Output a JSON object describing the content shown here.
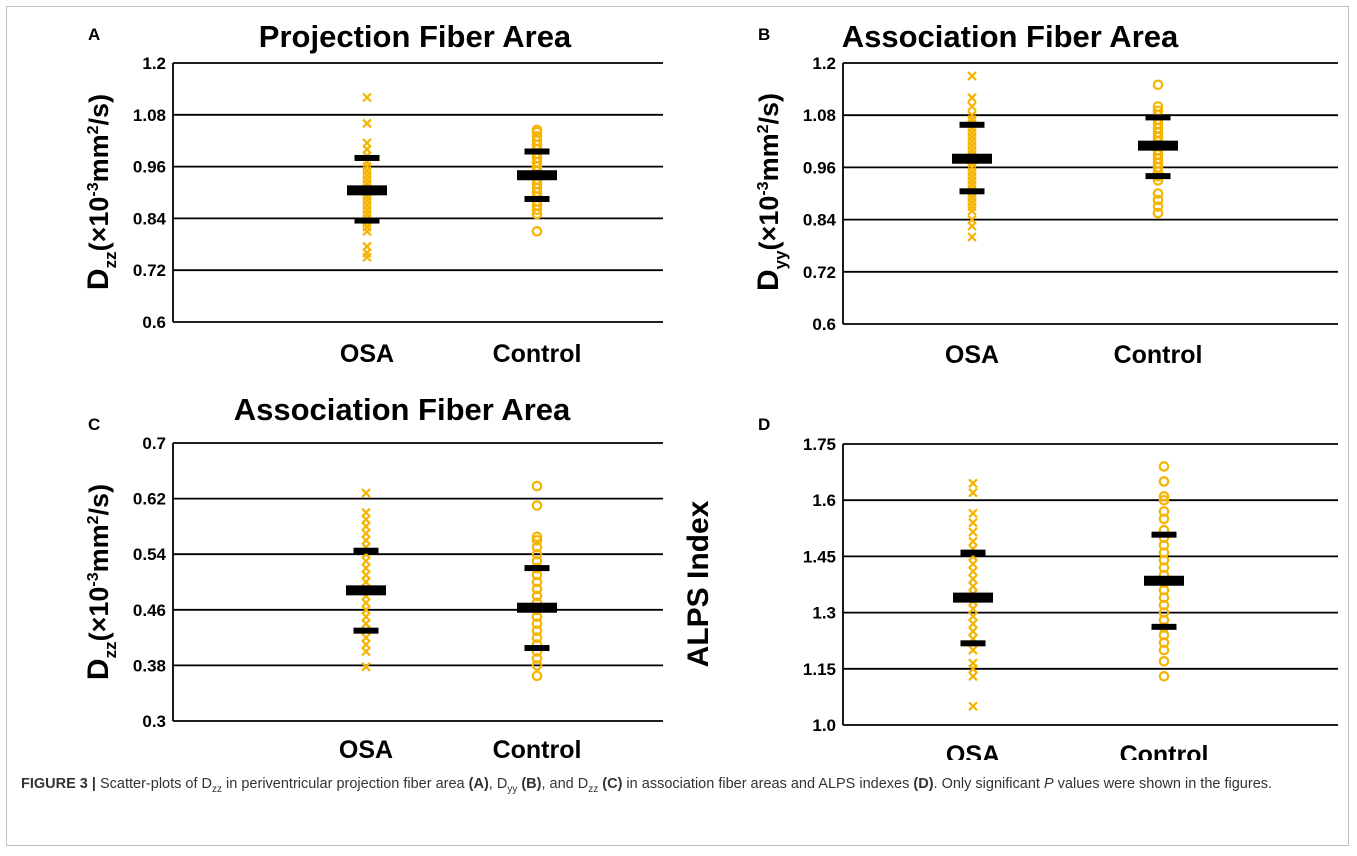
{
  "colors": {
    "points": "#f4b400",
    "summary": "#000000",
    "grid": "#000000"
  },
  "chart_data": [
    {
      "panel": "A",
      "type": "scatter",
      "title": "Projection Fiber Area",
      "ylabel": {
        "main": "D",
        "sub": "zz",
        "unit_pre": "(×10",
        "sup1": "-3",
        "unit_mid": "mm",
        "sup2": "2",
        "unit_post": "/s)"
      },
      "categories": [
        "OSA",
        "Control"
      ],
      "ylim": [
        0.6,
        1.2
      ],
      "yticks": [
        "1.2",
        "1.08",
        "0.96",
        "0.84",
        "0.72",
        "0.6"
      ],
      "grid": true,
      "series": [
        {
          "marker": "cross",
          "points": [
            1.12,
            1.06,
            1.015,
            1.0,
            0.985,
            0.97,
            0.96,
            0.95,
            0.94,
            0.93,
            0.92,
            0.91,
            0.9,
            0.89,
            0.88,
            0.87,
            0.86,
            0.85,
            0.84,
            0.83,
            0.82,
            0.81,
            0.775,
            0.76,
            0.75
          ],
          "mean": 0.905,
          "upper": 0.98,
          "lower": 0.835
        },
        {
          "marker": "circle",
          "points": [
            1.045,
            1.04,
            1.03,
            1.02,
            1.01,
            1.0,
            0.99,
            0.98,
            0.97,
            0.96,
            0.95,
            0.94,
            0.93,
            0.92,
            0.91,
            0.9,
            0.89,
            0.88,
            0.87,
            0.86,
            0.85,
            0.81
          ],
          "mean": 0.94,
          "upper": 0.995,
          "lower": 0.885
        }
      ]
    },
    {
      "panel": "B",
      "type": "scatter",
      "title": "Association Fiber Area",
      "ylabel": {
        "main": "D",
        "sub": "yy",
        "unit_pre": "(×10",
        "sup1": "-3",
        "unit_mid": "mm",
        "sup2": "2",
        "unit_post": "/s)"
      },
      "categories": [
        "OSA",
        "Control"
      ],
      "ylim": [
        0.6,
        1.2
      ],
      "yticks": [
        "1.2",
        "1.08",
        "0.96",
        "0.84",
        "0.72",
        "0.6"
      ],
      "grid": true,
      "series": [
        {
          "marker": "cross",
          "points": [
            1.17,
            1.12,
            1.1,
            1.08,
            1.07,
            1.06,
            1.05,
            1.04,
            1.03,
            1.02,
            1.01,
            1.0,
            0.99,
            0.98,
            0.97,
            0.96,
            0.95,
            0.94,
            0.93,
            0.92,
            0.91,
            0.9,
            0.89,
            0.88,
            0.87,
            0.86,
            0.84,
            0.825,
            0.8
          ],
          "mean": 0.98,
          "upper": 1.058,
          "lower": 0.905
        },
        {
          "marker": "circle",
          "points": [
            1.15,
            1.1,
            1.09,
            1.08,
            1.07,
            1.06,
            1.05,
            1.04,
            1.03,
            1.02,
            1.01,
            1.0,
            0.99,
            0.98,
            0.97,
            0.96,
            0.95,
            0.94,
            0.93,
            0.9,
            0.885,
            0.87,
            0.855
          ],
          "mean": 1.01,
          "upper": 1.075,
          "lower": 0.94
        }
      ]
    },
    {
      "panel": "C",
      "type": "scatter",
      "title": "Association Fiber Area",
      "ylabel": {
        "main": "D",
        "sub": "zz",
        "unit_pre": "(×10",
        "sup1": "-3",
        "unit_mid": "mm",
        "sup2": "2",
        "unit_post": "/s)"
      },
      "categories": [
        "OSA",
        "Control"
      ],
      "ylim": [
        0.3,
        0.7
      ],
      "yticks": [
        "0.7",
        "0.62",
        "0.54",
        "0.46",
        "0.38",
        "0.3"
      ],
      "grid": true,
      "series": [
        {
          "marker": "cross",
          "points": [
            0.628,
            0.6,
            0.59,
            0.58,
            0.57,
            0.56,
            0.55,
            0.54,
            0.53,
            0.52,
            0.51,
            0.5,
            0.49,
            0.48,
            0.47,
            0.46,
            0.45,
            0.44,
            0.43,
            0.42,
            0.41,
            0.4,
            0.378
          ],
          "mean": 0.488,
          "upper": 0.545,
          "lower": 0.43
        },
        {
          "marker": "circle",
          "points": [
            0.638,
            0.61,
            0.565,
            0.56,
            0.55,
            0.54,
            0.53,
            0.52,
            0.51,
            0.5,
            0.49,
            0.48,
            0.47,
            0.46,
            0.45,
            0.44,
            0.43,
            0.42,
            0.41,
            0.4,
            0.39,
            0.38,
            0.365
          ],
          "mean": 0.463,
          "upper": 0.52,
          "lower": 0.405
        }
      ]
    },
    {
      "panel": "D",
      "type": "scatter",
      "title": "",
      "ylabel": {
        "main": "ALPS Index",
        "sub": "",
        "unit_pre": "",
        "sup1": "",
        "unit_mid": "",
        "sup2": "",
        "unit_post": ""
      },
      "categories": [
        "OSA",
        "Control"
      ],
      "ylim": [
        1.0,
        1.75
      ],
      "yticks": [
        "1.75",
        "1.6",
        "1.45",
        "1.3",
        "1.15",
        "1.0"
      ],
      "grid": true,
      "series": [
        {
          "marker": "cross",
          "points": [
            1.645,
            1.62,
            1.565,
            1.54,
            1.515,
            1.49,
            1.47,
            1.45,
            1.43,
            1.41,
            1.39,
            1.37,
            1.35,
            1.33,
            1.31,
            1.29,
            1.27,
            1.25,
            1.23,
            1.2,
            1.165,
            1.15,
            1.13,
            1.05
          ],
          "mean": 1.34,
          "upper": 1.46,
          "lower": 1.218
        },
        {
          "marker": "circle",
          "points": [
            1.69,
            1.65,
            1.61,
            1.6,
            1.57,
            1.55,
            1.52,
            1.5,
            1.48,
            1.46,
            1.44,
            1.42,
            1.4,
            1.38,
            1.36,
            1.34,
            1.32,
            1.3,
            1.28,
            1.26,
            1.24,
            1.22,
            1.2,
            1.17,
            1.13
          ],
          "mean": 1.385,
          "upper": 1.508,
          "lower": 1.262
        }
      ]
    }
  ],
  "caption": {
    "label": "FIGURE 3 |",
    "t1": " Scatter-plots of D",
    "s1": "zz",
    "t2": " in periventricular projection fiber area ",
    "pA": "(A)",
    "t3": ", D",
    "s2": "yy",
    "t4": " ",
    "pB": "(B)",
    "t5": ", and D",
    "s3": "zz",
    "t6": " ",
    "pC": "(C)",
    "t7": " in association fiber areas and ALPS indexes ",
    "pD": "(D)",
    "t8": ". Only significant ",
    "p": "P",
    "t9": " values were shown in the figures."
  }
}
